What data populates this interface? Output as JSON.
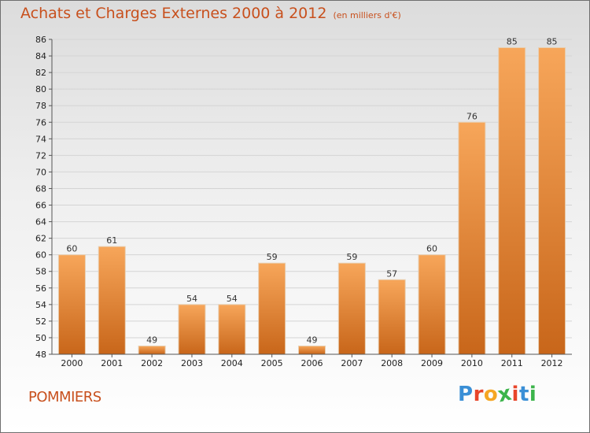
{
  "title": "Achats et Charges Externes 2000 à 2012",
  "unit": "(en milliers d'€)",
  "commune": "POMMIERS",
  "logo": {
    "letters": [
      "P",
      "r",
      "o",
      "x",
      "i",
      "t",
      "i"
    ],
    "colors": [
      "#3a8fd6",
      "#e8452a",
      "#f5a623",
      "#3cb44b",
      "#e8452a",
      "#3a8fd6",
      "#3cb44b"
    ]
  },
  "colors": {
    "title": "#c8501d",
    "bar_light": "#f7a65a",
    "bar_dark": "#c8661a"
  },
  "chart_data": {
    "type": "bar",
    "categories": [
      "2000",
      "2001",
      "2002",
      "2003",
      "2004",
      "2005",
      "2006",
      "2007",
      "2008",
      "2009",
      "2010",
      "2011",
      "2012"
    ],
    "values": [
      60,
      61,
      49,
      54,
      54,
      59,
      49,
      59,
      57,
      60,
      76,
      85,
      85
    ],
    "ylim": [
      48,
      86
    ],
    "yticks": [
      48,
      50,
      52,
      54,
      56,
      58,
      60,
      62,
      64,
      66,
      68,
      70,
      72,
      74,
      76,
      78,
      80,
      82,
      84,
      86
    ],
    "grid": true
  }
}
